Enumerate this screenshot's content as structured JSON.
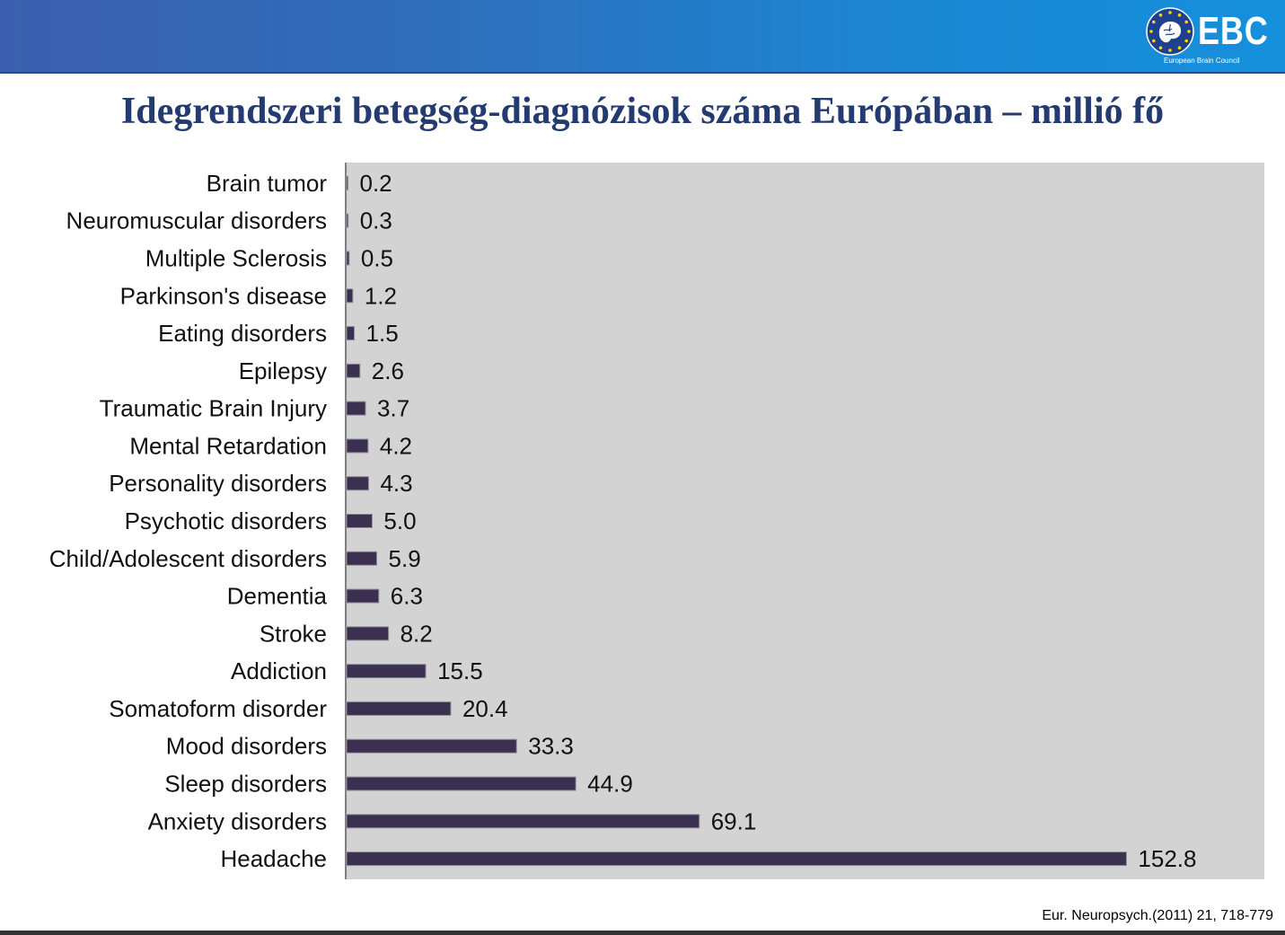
{
  "header": {
    "logo_text": "EBC",
    "logo_subtitle": "European Brain Council",
    "brand_color": "#2e6fbb"
  },
  "title": "Idegrendszeri betegség-diagnózisok száma Európában – millió fő",
  "citation": "Eur. Neuropsych.(2011) 21, 718-779",
  "chart_data": {
    "type": "bar",
    "orientation": "horizontal",
    "categories": [
      "Brain tumor",
      "Neuromuscular disorders",
      "Multiple Sclerosis",
      "Parkinson's disease",
      "Eating disorders",
      "Epilepsy",
      "Traumatic Brain Injury",
      "Mental Retardation",
      "Personality disorders",
      "Psychotic disorders",
      "Child/Adolescent disorders",
      "Dementia",
      "Stroke",
      "Addiction",
      "Somatoform disorder",
      "Mood disorders",
      "Sleep disorders",
      "Anxiety disorders",
      "Headache"
    ],
    "values": [
      0.2,
      0.3,
      0.5,
      1.2,
      1.5,
      2.6,
      3.7,
      4.2,
      4.3,
      5.0,
      5.9,
      6.3,
      8.2,
      15.5,
      20.4,
      33.3,
      44.9,
      69.1,
      152.8
    ],
    "value_labels": [
      "0.2",
      "0.3",
      "0.5",
      "1.2",
      "1.5",
      "2.6",
      "3.7",
      "4.2",
      "4.3",
      "5.0",
      "5.9",
      "6.3",
      "8.2",
      "15.5",
      "20.4",
      "33.3",
      "44.9",
      "69.1",
      "152.8"
    ],
    "title": "",
    "xlabel": "",
    "ylabel": "",
    "xlim": [
      0,
      180
    ],
    "grid": false,
    "legend": "none",
    "bar_color": "#3b3050",
    "plot_background": "#d3d3d3"
  }
}
